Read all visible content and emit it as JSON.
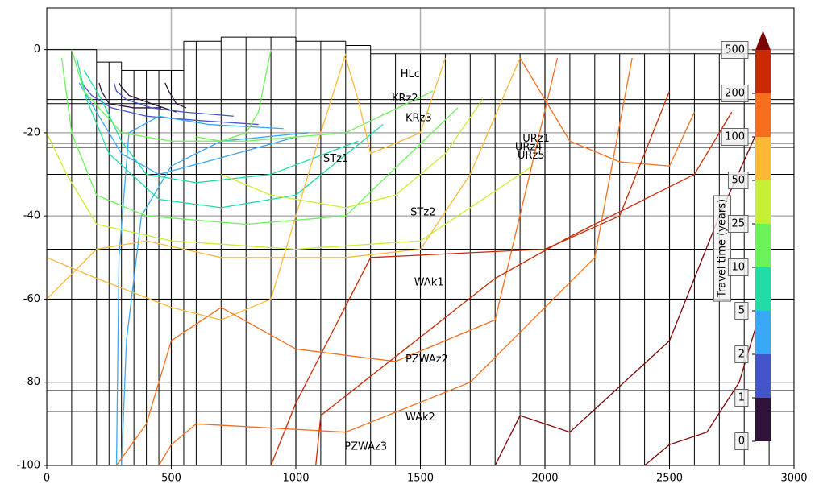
{
  "chart_data": {
    "type": "line",
    "xlim": [
      0,
      3000
    ],
    "ylim": [
      -100,
      10
    ],
    "xticks": [
      0,
      500,
      1000,
      1500,
      2000,
      2500,
      3000
    ],
    "yticks": [
      0,
      -20,
      -40,
      -60,
      -80,
      -100
    ],
    "grid": true,
    "model_grid": {
      "columns": [
        0,
        100,
        200,
        250,
        300,
        350,
        400,
        450,
        500,
        550,
        600,
        700,
        800,
        900,
        1000,
        1100,
        1200,
        1300,
        1400,
        1500,
        1600,
        1700,
        1800,
        1900,
        2000,
        2100,
        2200,
        2300,
        2400,
        2500,
        2600,
        2700,
        2800,
        2900,
        3000
      ],
      "tops": [
        0,
        0,
        -3,
        -3,
        -5,
        -5,
        -5,
        -5,
        -5,
        2,
        2,
        3,
        3,
        3,
        2,
        2,
        1,
        -1,
        -1,
        -1,
        -1,
        -1,
        -1,
        -1,
        -1,
        -1,
        -1,
        -1,
        -1,
        -1,
        -1,
        -1,
        -1,
        -1
      ],
      "layers": [
        -12,
        -13,
        -22.5,
        -23.5,
        -30,
        -48,
        -60,
        -82,
        -87,
        -100
      ]
    },
    "annotations": [
      {
        "text": "HLc",
        "x": 1420,
        "y": -6
      },
      {
        "text": "KRz2",
        "x": 1385,
        "y": -11.8
      },
      {
        "text": "KRz3",
        "x": 1440,
        "y": -16.5
      },
      {
        "text": "URz1",
        "x": 1910,
        "y": -21.5
      },
      {
        "text": "URz4",
        "x": 1880,
        "y": -23.5
      },
      {
        "text": "URz5",
        "x": 1890,
        "y": -25.5
      },
      {
        "text": "STz1",
        "x": 1110,
        "y": -26.3
      },
      {
        "text": "STz2",
        "x": 1460,
        "y": -39.2
      },
      {
        "text": "WAk1",
        "x": 1475,
        "y": -56
      },
      {
        "text": "PZWAz2",
        "x": 1440,
        "y": -74.5
      },
      {
        "text": "WAk2",
        "x": 1440,
        "y": -88.5
      },
      {
        "text": "PZWAz3",
        "x": 1195,
        "y": -95.5
      }
    ],
    "colorbar": {
      "label": "Travel time (years)",
      "ticks": [
        0,
        1,
        2,
        5,
        10,
        25,
        50,
        100,
        200,
        500
      ],
      "colors": [
        "#30123b",
        "#4456c7",
        "#3aa8f2",
        "#1fdda5",
        "#6df25b",
        "#c7ef34",
        "#fbb938",
        "#f5701e",
        "#c92a05",
        "#7a0403"
      ]
    },
    "series": [
      {
        "color": "#30123b",
        "x": [
          560,
          520,
          490,
          475
        ],
        "values": [
          -14,
          -13,
          -10,
          -8
        ]
      },
      {
        "color": "#30123b",
        "x": [
          520,
          420,
          330,
          300,
          290
        ],
        "values": [
          -15,
          -13,
          -11,
          -9,
          -8
        ]
      },
      {
        "color": "#30123b",
        "x": [
          460,
          350,
          250,
          220,
          210
        ],
        "values": [
          -14,
          -14,
          -13,
          -10,
          -8
        ]
      },
      {
        "color": "#4456c7",
        "x": [
          750,
          550,
          420,
          320,
          280,
          270
        ],
        "values": [
          -16,
          -15,
          -14,
          -12,
          -10,
          -8
        ]
      },
      {
        "color": "#4456c7",
        "x": [
          850,
          600,
          400,
          260,
          180,
          140
        ],
        "values": [
          -18,
          -17,
          -16,
          -14,
          -11,
          -8
        ]
      },
      {
        "color": "#3aa8f2",
        "x": [
          950,
          650,
          450,
          330,
          290,
          280
        ],
        "values": [
          -19,
          -18,
          -16,
          -20,
          -50,
          -100
        ]
      },
      {
        "color": "#3aa8f2",
        "x": [
          1050,
          700,
          500,
          380,
          320,
          300
        ],
        "values": [
          -20,
          -22,
          -28,
          -40,
          -70,
          -100
        ]
      },
      {
        "color": "#3aa8f2",
        "x": [
          1000,
          700,
          450,
          300,
          200,
          130
        ],
        "values": [
          -21,
          -26,
          -30,
          -25,
          -15,
          -8
        ]
      },
      {
        "color": "#1fdda5",
        "x": [
          1250,
          900,
          600,
          400,
          300,
          220,
          150
        ],
        "values": [
          -22,
          -30,
          -32,
          -30,
          -22,
          -12,
          -5
        ]
      },
      {
        "color": "#1fdda5",
        "x": [
          1350,
          1000,
          700,
          450,
          250,
          160,
          120
        ],
        "values": [
          -18,
          -35,
          -38,
          -36,
          -25,
          -12,
          -2
        ]
      },
      {
        "color": "#6df25b",
        "x": [
          1550,
          1200,
          800,
          500,
          300,
          150,
          100
        ],
        "values": [
          -10,
          -20,
          -22,
          -22,
          -20,
          -10,
          0
        ]
      },
      {
        "color": "#6df25b",
        "x": [
          1650,
          1200,
          800,
          400,
          200,
          100,
          60
        ],
        "values": [
          -14,
          -40,
          -42,
          -40,
          -35,
          -20,
          -2
        ]
      },
      {
        "color": "#6df25b",
        "x": [
          900,
          850,
          800,
          700,
          600
        ],
        "values": [
          0,
          -15,
          -20,
          -22,
          -21
        ]
      },
      {
        "color": "#c7ef34",
        "x": [
          1950,
          1500,
          1000,
          500,
          200,
          80,
          0
        ],
        "values": [
          -28,
          -46,
          -48,
          -46,
          -42,
          -30,
          -20
        ]
      },
      {
        "color": "#c7ef34",
        "x": [
          1750,
          1600,
          1400,
          1200,
          900,
          700
        ],
        "values": [
          -12,
          -25,
          -35,
          -38,
          -35,
          -30
        ]
      },
      {
        "color": "#fbb938",
        "x": [
          1200,
          1100,
          900,
          700,
          500,
          200,
          0
        ],
        "values": [
          -1,
          -20,
          -60,
          -65,
          -62,
          -55,
          -50
        ]
      },
      {
        "color": "#fbb938",
        "x": [
          1600,
          1500,
          1300,
          1250,
          1200
        ],
        "values": [
          -2,
          -20,
          -25,
          -12,
          -2
        ]
      },
      {
        "color": "#fbb938",
        "x": [
          1900,
          1700,
          1500,
          1200,
          700,
          400,
          200,
          0
        ],
        "values": [
          -2,
          -30,
          -48,
          -50,
          -50,
          -46,
          -48,
          -60
        ]
      },
      {
        "color": "#f5701e",
        "x": [
          2050,
          1800,
          1400,
          1000,
          700,
          500,
          400,
          280
        ],
        "values": [
          -2,
          -65,
          -75,
          -72,
          -62,
          -70,
          -90,
          -100
        ]
      },
      {
        "color": "#f5701e",
        "x": [
          2350,
          2200,
          1700,
          1200,
          600,
          500,
          450
        ],
        "values": [
          -2,
          -50,
          -80,
          -92,
          -90,
          -95,
          -100
        ]
      },
      {
        "color": "#f5701e",
        "x": [
          2600,
          2500,
          2300,
          2100,
          1900
        ],
        "values": [
          -15,
          -28,
          -27,
          -22,
          -2
        ]
      },
      {
        "color": "#c92a05",
        "x": [
          2500,
          2300,
          2000,
          1300,
          1000,
          900
        ],
        "values": [
          -10,
          -40,
          -48,
          -50,
          -85,
          -100
        ]
      },
      {
        "color": "#c92a05",
        "x": [
          2750,
          2600,
          2100,
          1800,
          1100,
          1080
        ],
        "values": [
          -15,
          -30,
          -45,
          -55,
          -88,
          -100
        ]
      },
      {
        "color": "#7a0403",
        "x": [
          2850,
          2700,
          2500,
          2100,
          1900,
          1800
        ],
        "values": [
          -20,
          -40,
          -70,
          -92,
          -88,
          -100
        ]
      },
      {
        "color": "#7a0403",
        "x": [
          2880,
          2780,
          2650,
          2500,
          2400
        ],
        "values": [
          -60,
          -80,
          -92,
          -95,
          -100
        ]
      }
    ]
  }
}
